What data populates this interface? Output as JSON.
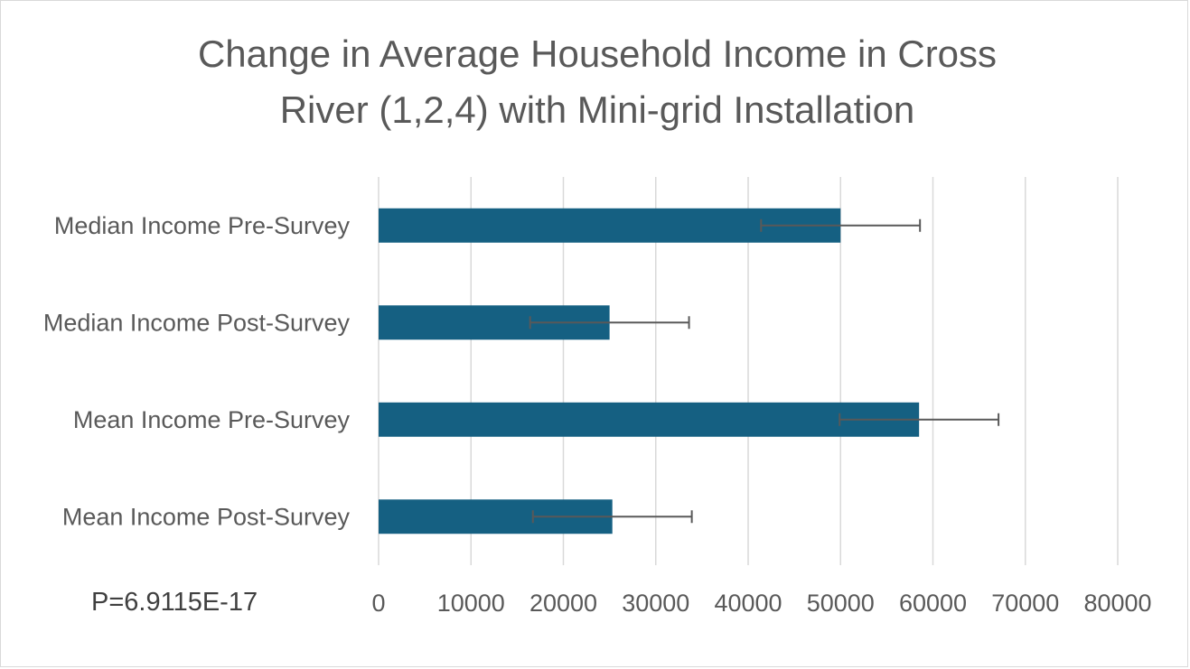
{
  "chart_data": {
    "type": "bar",
    "orientation": "horizontal",
    "title_lines": [
      "Change in Average Household Income in Cross",
      "River (1,2,4) with Mini-grid Installation"
    ],
    "categories": [
      "Median Income Pre-Survey",
      "Median Income Post-Survey",
      "Mean Income Pre-Survey",
      "Mean Income Post-Survey"
    ],
    "values": [
      50000,
      25000,
      58500,
      25300
    ],
    "error_bars": [
      8600,
      8600,
      8600,
      8600
    ],
    "xlim": [
      0,
      80000
    ],
    "x_ticks": [
      0,
      10000,
      20000,
      30000,
      40000,
      50000,
      60000,
      70000,
      80000
    ],
    "x_tick_labels": [
      "0",
      "10000",
      "20000",
      "30000",
      "40000",
      "50000",
      "60000",
      "70000",
      "80000"
    ],
    "grid": "vertical",
    "legend": "none",
    "annotation": "P=6.9115E-17",
    "colors": {
      "bar": "#156082",
      "error_bar": "#595959",
      "grid": "#d9d9d9",
      "text": "#595959"
    }
  }
}
